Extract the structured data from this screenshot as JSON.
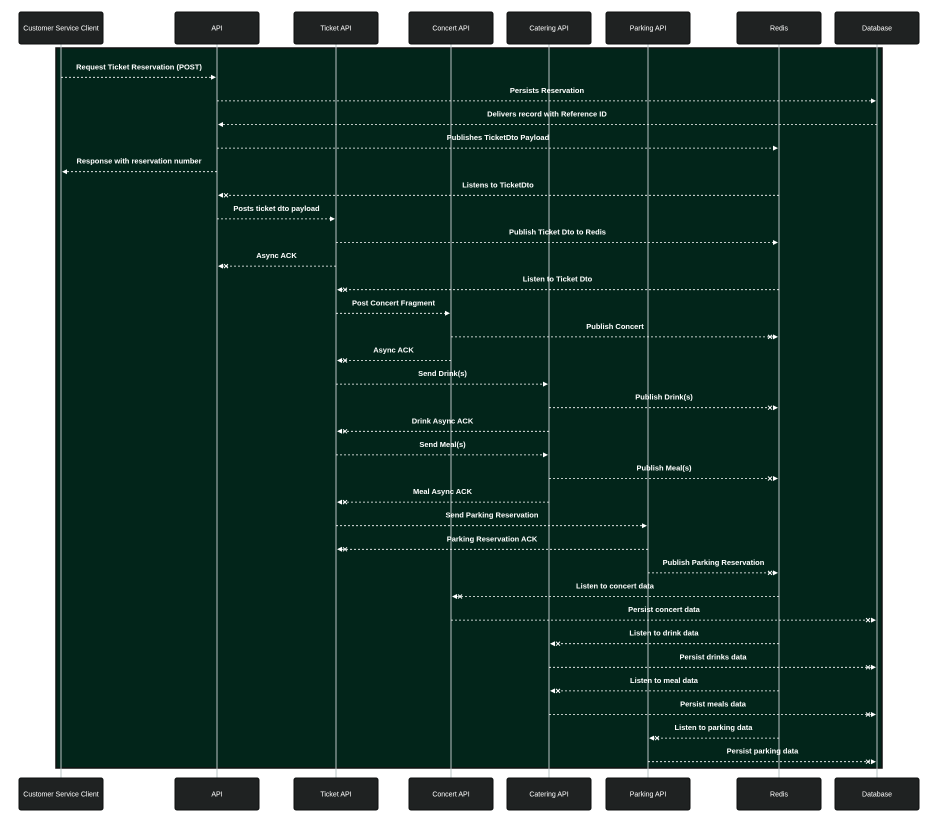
{
  "colors": {
    "actor_fill": "#1f2222",
    "actor_text": "#ffffff",
    "background": "#02251a",
    "lifeline": "#b9c4c4",
    "message": "#ffffff"
  },
  "participants": [
    {
      "id": "client",
      "label": "Customer Service Client"
    },
    {
      "id": "api",
      "label": "API"
    },
    {
      "id": "ticket",
      "label": "Ticket API"
    },
    {
      "id": "concert",
      "label": "Concert API"
    },
    {
      "id": "catering",
      "label": "Catering API"
    },
    {
      "id": "parking",
      "label": "Parking API"
    },
    {
      "id": "redis",
      "label": "Redis"
    },
    {
      "id": "db",
      "label": "Database"
    }
  ],
  "messages": [
    {
      "from": "client",
      "to": "api",
      "label": "Request Ticket Reservation (POST)",
      "head": "arrow"
    },
    {
      "from": "api",
      "to": "db",
      "label": "Persists Reservation",
      "head": "arrow"
    },
    {
      "from": "db",
      "to": "api",
      "label": "Delivers record with Reference ID",
      "head": "arrow"
    },
    {
      "from": "api",
      "to": "redis",
      "label": "Publishes TicketDto Payload",
      "head": "arrow"
    },
    {
      "from": "api",
      "to": "client",
      "label": "Response with reservation number",
      "head": "arrow"
    },
    {
      "from": "redis",
      "to": "api",
      "label": "Listens to TicketDto",
      "head": "cross"
    },
    {
      "from": "api",
      "to": "ticket",
      "label": "Posts ticket dto payload",
      "head": "arrow"
    },
    {
      "from": "ticket",
      "to": "redis",
      "label": "Publish Ticket Dto to Redis",
      "head": "arrow"
    },
    {
      "from": "ticket",
      "to": "api",
      "label": "Async ACK",
      "head": "cross"
    },
    {
      "from": "redis",
      "to": "ticket",
      "label": "Listen to Ticket Dto",
      "head": "cross"
    },
    {
      "from": "ticket",
      "to": "concert",
      "label": "Post Concert Fragment",
      "head": "arrow"
    },
    {
      "from": "concert",
      "to": "redis",
      "label": "Publish Concert",
      "head": "cross"
    },
    {
      "from": "concert",
      "to": "ticket",
      "label": "Async ACK",
      "head": "cross"
    },
    {
      "from": "ticket",
      "to": "catering",
      "label": "Send Drink(s)",
      "head": "arrow"
    },
    {
      "from": "catering",
      "to": "redis",
      "label": "Publish Drink(s)",
      "head": "cross"
    },
    {
      "from": "catering",
      "to": "ticket",
      "label": "Drink Async ACK",
      "head": "cross"
    },
    {
      "from": "ticket",
      "to": "catering",
      "label": "Send Meal(s)",
      "head": "arrow"
    },
    {
      "from": "catering",
      "to": "redis",
      "label": "Publish Meal(s)",
      "head": "cross"
    },
    {
      "from": "catering",
      "to": "ticket",
      "label": "Meal Async ACK",
      "head": "cross"
    },
    {
      "from": "ticket",
      "to": "parking",
      "label": "Send Parking Reservation",
      "head": "arrow"
    },
    {
      "from": "parking",
      "to": "ticket",
      "label": "Parking Reservation ACK",
      "head": "cross"
    },
    {
      "from": "parking",
      "to": "redis",
      "label": "Publish Parking Reservation",
      "head": "cross"
    },
    {
      "from": "redis",
      "to": "concert",
      "label": "Listen to concert data",
      "head": "cross"
    },
    {
      "from": "concert",
      "to": "db",
      "label": "Persist concert data",
      "head": "cross"
    },
    {
      "from": "redis",
      "to": "catering",
      "label": "Listen to drink data",
      "head": "cross"
    },
    {
      "from": "catering",
      "to": "db",
      "label": "Persist drinks data",
      "head": "cross"
    },
    {
      "from": "redis",
      "to": "catering",
      "label": "Listen to meal data",
      "head": "cross"
    },
    {
      "from": "catering",
      "to": "db",
      "label": "Persist meals data",
      "head": "cross"
    },
    {
      "from": "redis",
      "to": "parking",
      "label": "Listen to parking data",
      "head": "cross"
    },
    {
      "from": "parking",
      "to": "db",
      "label": "Persist parking data",
      "head": "cross"
    }
  ]
}
